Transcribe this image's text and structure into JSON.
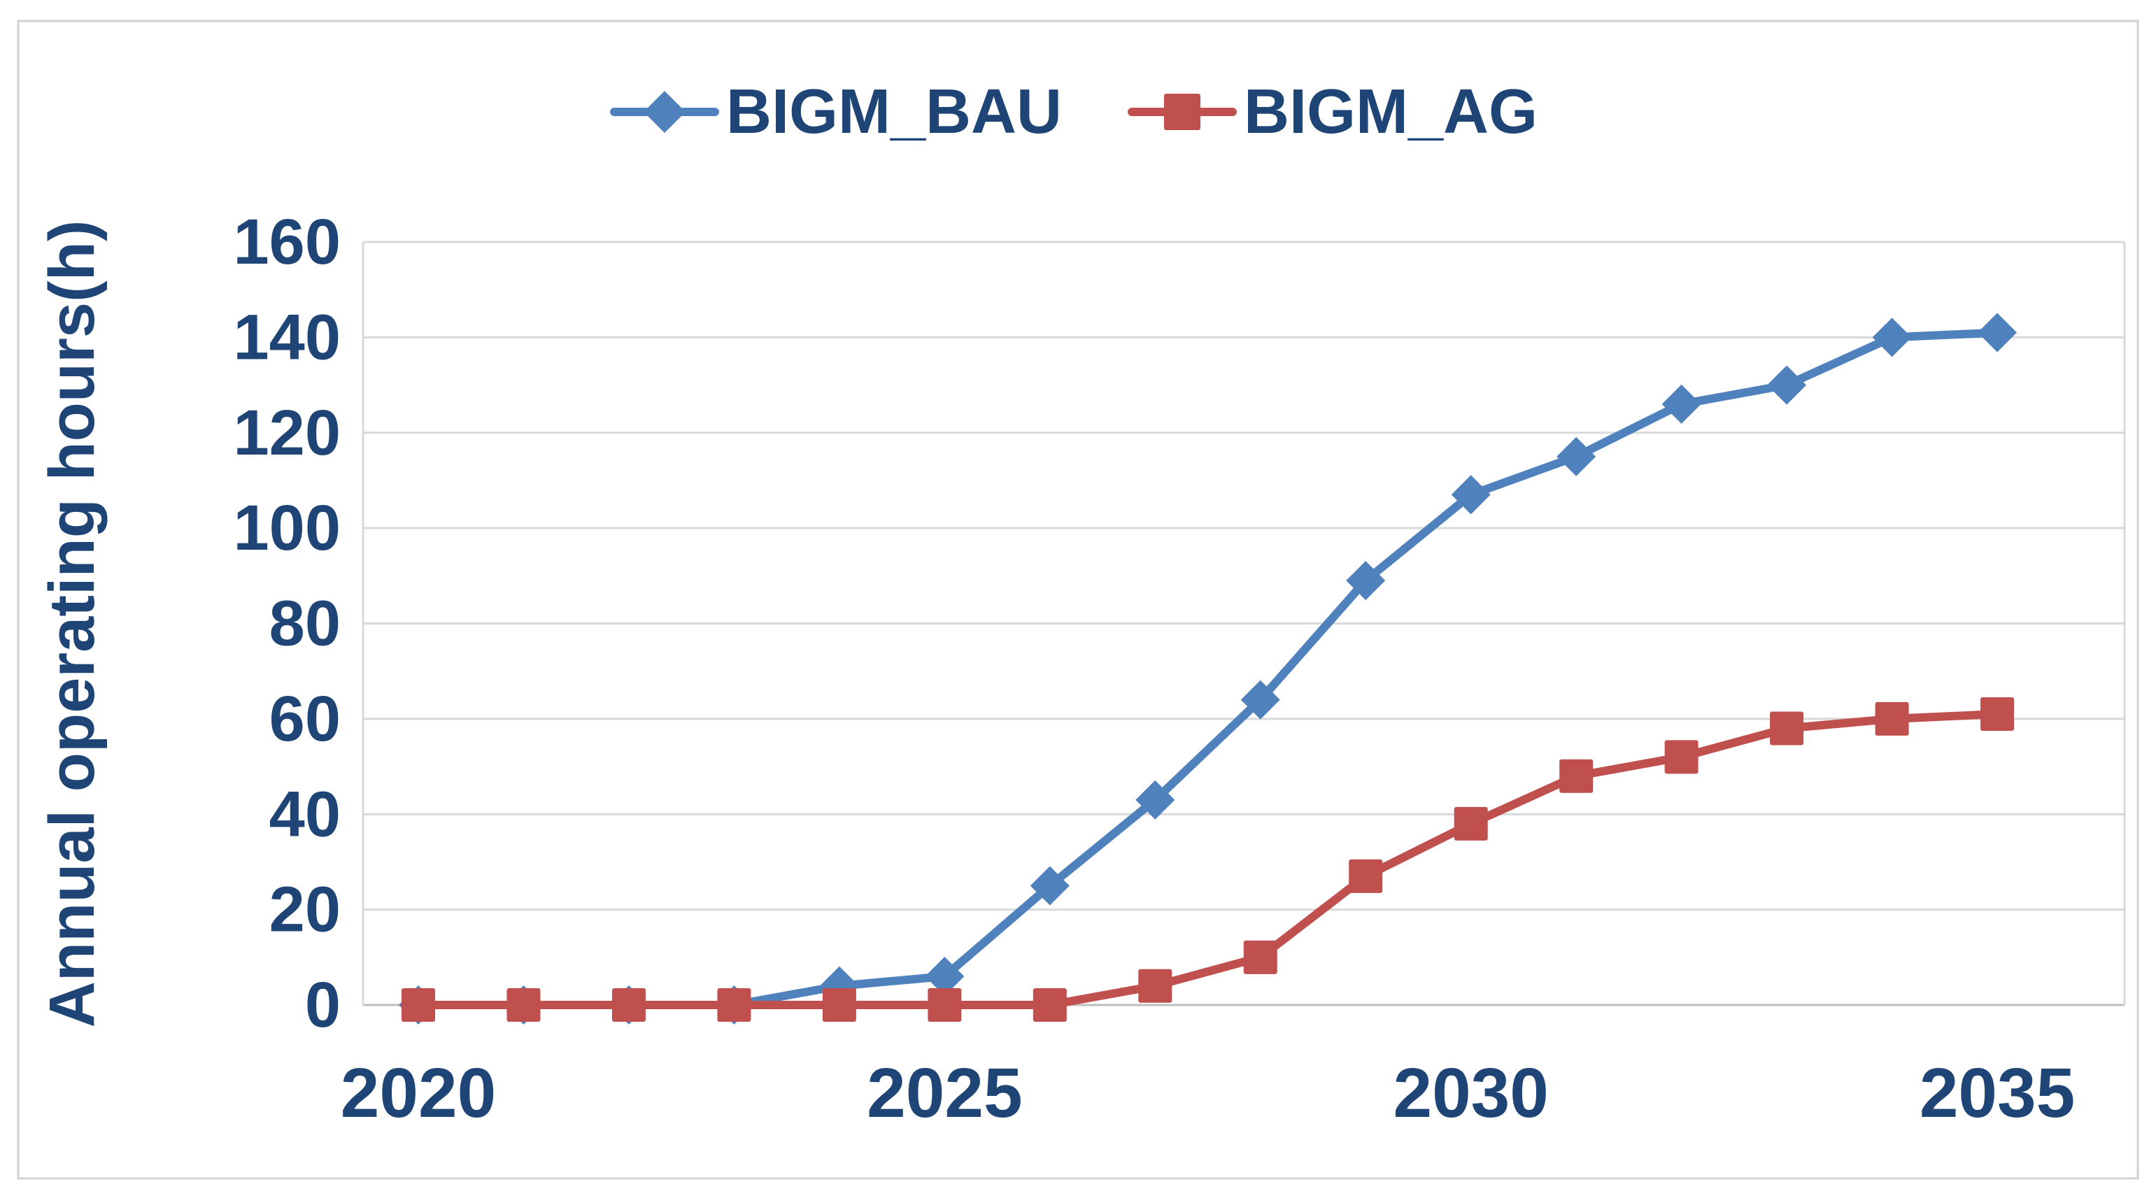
{
  "figure": {
    "background_color": "#FFFFFF",
    "border_color": "#D2D2D2",
    "plot_border_color": "#D9D9D9",
    "grid_color": "#D9D9D9",
    "axis_line_color": "#BFBFBF",
    "text_color": "#1F4577"
  },
  "legend": {
    "items": [
      {
        "label": "BIGM_BAU",
        "color": "#4F81BD",
        "marker": "diamond"
      },
      {
        "label": "BIGM_AG",
        "color": "#C0504D",
        "marker": "square"
      }
    ]
  },
  "chart_data": {
    "type": "line",
    "title": "",
    "xlabel": "",
    "ylabel": "Annual operating hours(h)",
    "x": [
      2020,
      2021,
      2022,
      2023,
      2024,
      2025,
      2026,
      2027,
      2028,
      2029,
      2030,
      2031,
      2032,
      2033,
      2034,
      2035
    ],
    "series": [
      {
        "name": "BIGM_BAU",
        "color": "#4F81BD",
        "marker": "diamond",
        "values": [
          0,
          0,
          0,
          0,
          4,
          6,
          25,
          43,
          64,
          89,
          107,
          115,
          126,
          130,
          140,
          141
        ]
      },
      {
        "name": "BIGM_AG",
        "color": "#C0504D",
        "marker": "square",
        "values": [
          0,
          0,
          0,
          0,
          0,
          0,
          0,
          4,
          10,
          27,
          38,
          48,
          52,
          58,
          60,
          61
        ]
      }
    ],
    "ylim": [
      0,
      160
    ],
    "yticks": [
      0,
      20,
      40,
      60,
      80,
      100,
      120,
      140,
      160
    ],
    "xticks": [
      2020,
      2025,
      2030,
      2035
    ],
    "grid": true,
    "legend_position": "top"
  }
}
